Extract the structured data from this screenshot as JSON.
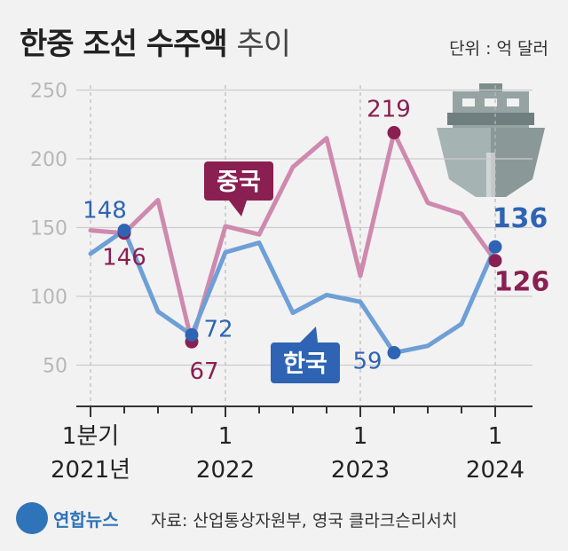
{
  "header": {
    "title_bold": "한중 조선 수주액",
    "title_light": "추이",
    "unit": "단위 : 억 달러"
  },
  "footer": {
    "logo_text": "연합뉴스",
    "source": "자료: 산업통상자원부, 영국 클라크슨리서치"
  },
  "colors": {
    "korea": "#6e9fd6",
    "korea_marker": "#2e64b3",
    "china": "#cf89ae",
    "china_marker": "#8a1f52",
    "grid": "#cccccc",
    "axis": "#333333"
  },
  "chart_data": {
    "type": "line",
    "x": [
      "2021 Q1",
      "2021 Q2",
      "2021 Q3",
      "2021 Q4",
      "2022 Q1",
      "2022 Q2",
      "2022 Q3",
      "2022 Q4",
      "2023 Q1",
      "2023 Q2",
      "2023 Q3",
      "2023 Q4",
      "2024 Q1"
    ],
    "ylim": [
      40,
      260
    ],
    "yticks": [
      50,
      100,
      150,
      200,
      250
    ],
    "xtick_labels": [
      {
        "index": 0,
        "line1": "1분기",
        "line2": "2021년"
      },
      {
        "index": 4,
        "line1": "1",
        "line2": "2022"
      },
      {
        "index": 8,
        "line1": "1",
        "line2": "2023"
      },
      {
        "index": 12,
        "line1": "1",
        "line2": "2024"
      }
    ],
    "series": [
      {
        "name": "중국",
        "key": "china",
        "values": [
          148,
          146,
          170,
          67,
          151,
          145,
          194,
          215,
          115,
          219,
          168,
          160,
          126
        ],
        "labels": [
          {
            "index": 1,
            "text": "146"
          },
          {
            "index": 3,
            "text": "67"
          },
          {
            "index": 9,
            "text": "219"
          },
          {
            "index": 12,
            "text": "126"
          }
        ]
      },
      {
        "name": "한국",
        "key": "korea",
        "values": [
          131,
          148,
          89,
          72,
          132,
          139,
          88,
          101,
          96,
          59,
          64,
          80,
          136
        ],
        "labels": [
          {
            "index": 1,
            "text": "148"
          },
          {
            "index": 3,
            "text": "72"
          },
          {
            "index": 9,
            "text": "59"
          },
          {
            "index": 12,
            "text": "136"
          }
        ]
      }
    ]
  }
}
